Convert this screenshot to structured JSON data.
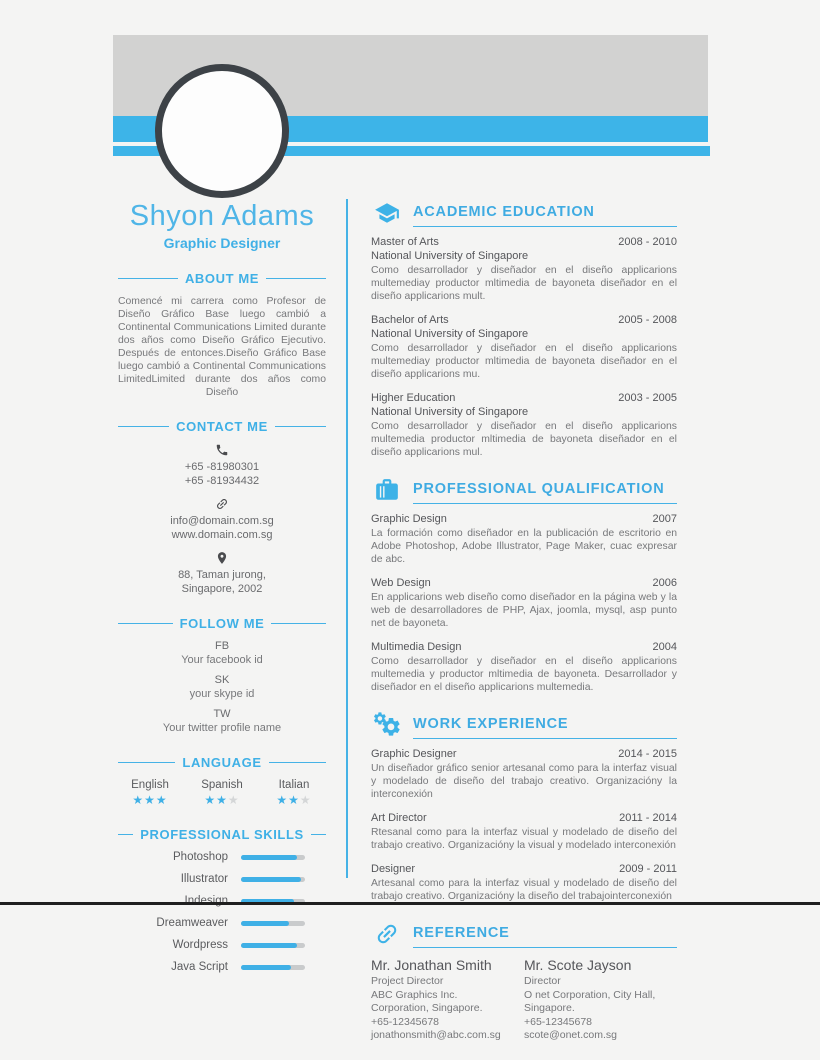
{
  "colors": {
    "accent": "#3fb0e6",
    "band_gray": "#d2d2d1",
    "circle_border": "#3d4247",
    "heading_text": "#55565a",
    "body_text": "#77787b",
    "star_off": "#d4d6d7",
    "bar_track": "#c9cbcc",
    "background": "#f4f4f3"
  },
  "icons": {
    "education": "graduation-cap-icon",
    "qualification": "briefcase-icon",
    "experience": "gears-icon",
    "reference": "chain-link-icon",
    "phone": "phone-icon",
    "web": "link-icon",
    "address": "map-pin-icon"
  },
  "profile": {
    "name": "Shyon Adams",
    "role": "Graphic Designer"
  },
  "left": {
    "about": {
      "title": "ABOUT ME",
      "text": "Comencé mi carrera como Profesor de Diseño Gráfico Base luego cambió a Continental Communications Limited durante dos años como Diseño Gráfico Ejecutivo. Después de entonces.Diseño Gráfico Base luego cambió a Continental Communications LimitedLimited durante dos años como Diseño"
    },
    "contact": {
      "title": "CONTACT ME",
      "phones": [
        "+65 -81980301",
        "+65 -81934432"
      ],
      "web": [
        "info@domain.com.sg",
        "www.domain.com.sg"
      ],
      "address": [
        "88,  Taman jurong,",
        "Singapore, 2002"
      ]
    },
    "follow": {
      "title": "FOLLOW ME",
      "items": [
        {
          "abbr": "FB",
          "label": "Your facebook id"
        },
        {
          "abbr": "SK",
          "label": "your skype id"
        },
        {
          "abbr": "TW",
          "label": "Your twitter profile name"
        }
      ]
    },
    "language": {
      "title": "LANGUAGE",
      "items": [
        {
          "name": "English",
          "stars": 3,
          "max": 3
        },
        {
          "name": "Spanish",
          "stars": 2,
          "max": 3
        },
        {
          "name": "Italian",
          "stars": 2,
          "max": 3
        }
      ]
    },
    "skills": {
      "title": "PROFESSIONAL SKILLS",
      "items": [
        {
          "name": "Photoshop",
          "percent": 88
        },
        {
          "name": "Illustrator",
          "percent": 93
        },
        {
          "name": "Indesign",
          "percent": 83
        },
        {
          "name": "Dreamweaver",
          "percent": 75
        },
        {
          "name": "Wordpress",
          "percent": 88
        },
        {
          "name": "Java Script",
          "percent": 78
        }
      ]
    }
  },
  "right": {
    "education": {
      "title": "ACADEMIC EDUCATION",
      "entries": [
        {
          "degree": "Master of Arts",
          "dates": "2008 - 2010",
          "school": "National University of Singapore",
          "description": "Como desarrollador y diseñador en el diseño applicarions multemediay productor mltimedia de bayoneta diseñador en el diseño applicarions mult."
        },
        {
          "degree": "Bachelor of Arts",
          "dates": "2005 - 2008",
          "school": "National University of Singapore",
          "description": "Como desarrollador y diseñador en el diseño applicarions multemediay productor mltimedia de bayoneta diseñador en el diseño applicarions mu."
        },
        {
          "degree": "Higher Education",
          "dates": "2003 - 2005",
          "school": "National University of Singapore",
          "description": "Como desarrollador y diseñador en el diseño applicarions multemedia productor mltimedia de bayoneta diseñador en el diseño applicarions mul."
        }
      ]
    },
    "qualification": {
      "title": "PROFESSIONAL QUALIFICATION",
      "entries": [
        {
          "name": "Graphic Design",
          "dates": "2007",
          "description": "La formación como diseñador en la publicación de escritorio en Adobe Photoshop, Adobe Illustrator, Page Maker, cuac expresar de abc."
        },
        {
          "name": "Web Design",
          "dates": "2006",
          "description": "En applicarions web diseño como diseñador en la página web y la web de desarrolladores de PHP, Ajax, joomla, mysql, asp punto net de bayoneta."
        },
        {
          "name": "Multimedia Design",
          "dates": "2004",
          "description": "Como desarrollador y diseñador en el diseño applicarions multemedia y productor mltimedia de bayoneta. Desarrollador y diseñador en el diseño applicarions multemedia."
        }
      ]
    },
    "experience": {
      "title": "WORK EXPERIENCE",
      "entries": [
        {
          "name": "Graphic Designer",
          "dates": "2014 - 2015",
          "description": "Un diseñador gráfico senior artesanal como para la interfaz visual y modelado de diseño del trabajo creativo. Organizacióny la interconexión"
        },
        {
          "name": "Art Director",
          "dates": "2011 - 2014",
          "description": "Rtesanal como para la interfaz visual y modelado de diseño del trabajo creativo. Organizacióny la visual y modelado interconexión"
        },
        {
          "name": "Designer",
          "dates": "2009 - 2011",
          "description": "Artesanal como para la interfaz visual y modelado de diseño del trabajo creativo. Organizacióny la diseño del trabajointerconexión"
        }
      ]
    },
    "reference": {
      "title": "REFERENCE",
      "entries": [
        {
          "name": "Mr. Jonathan Smith",
          "role": "Project Director",
          "company": "ABC Graphics Inc. Corporation, Singapore.",
          "phone": "+65-12345678",
          "email": "jonathonsmith@abc.com.sg"
        },
        {
          "name": "Mr. Scote Jayson",
          "role": "Director",
          "company": "O net Corporation, City Hall, Singapore.",
          "phone": "+65-12345678",
          "email": "scote@onet.com.sg"
        }
      ]
    }
  }
}
